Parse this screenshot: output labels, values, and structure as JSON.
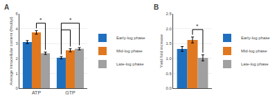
{
  "chart_data": [
    {
      "type": "bar",
      "title": "A",
      "categories": [
        "ATP",
        "GTP"
      ],
      "series": [
        {
          "name": "Early-log phase",
          "color": "#1F6FBF",
          "values": [
            3.1,
            2.05
          ],
          "errors": [
            0.1,
            0.08
          ]
        },
        {
          "name": "Mid-log phase",
          "color": "#E07820",
          "values": [
            3.75,
            2.55
          ],
          "errors": [
            0.12,
            0.1
          ]
        },
        {
          "name": "Late-log phase",
          "color": "#A0A0A0",
          "values": [
            2.35,
            2.65
          ],
          "errors": [
            0.08,
            0.08
          ]
        }
      ],
      "ylabel": "Average Intracellular content (fmol/µl)",
      "ylim": [
        0,
        5
      ],
      "yticks": [
        0,
        1,
        2,
        3,
        4,
        5
      ],
      "grid": true,
      "legend": "right",
      "annotations": [
        {
          "text": "*",
          "category": "ATP",
          "from": "Mid-log phase",
          "to": "Late-log phase"
        },
        {
          "text": "*",
          "category": "GTP",
          "from": "Early-log phase",
          "to": "Late-log phase"
        },
        {
          "category": "GTP",
          "from": "Early-log phase",
          "to": "Mid-log phase"
        }
      ]
    },
    {
      "type": "bar",
      "title": "B",
      "categories": [
        null
      ],
      "series": [
        {
          "name": "Early-log phase",
          "color": "#1F6FBF",
          "values": [
            1.32
          ],
          "errors": [
            0.08
          ]
        },
        {
          "name": "Mid-log phase",
          "color": "#E07820",
          "values": [
            1.62
          ],
          "errors": [
            0.1
          ]
        },
        {
          "name": "Late-log phase",
          "color": "#A0A0A0",
          "values": [
            1.02
          ],
          "errors": [
            0.1
          ]
        }
      ],
      "ylabel": "Yield fold increase",
      "ylim": [
        0,
        2.5
      ],
      "yticks": [
        {
          "value": 0,
          "label": "0.0"
        },
        0.5,
        {
          "value": 1,
          "label": "1.0"
        },
        1.5,
        {
          "value": 2,
          "label": "2.0"
        },
        2.5
      ],
      "grid": true,
      "legend": "right",
      "tick_labels": "y",
      "annotations": [
        {
          "text": "*",
          "category": null,
          "from": "Mid-log phase",
          "to": "Late-log phase"
        }
      ]
    }
  ]
}
